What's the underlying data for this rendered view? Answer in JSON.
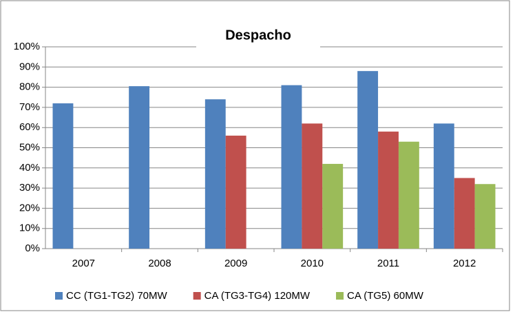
{
  "chart_data": {
    "type": "bar",
    "title": "Despacho",
    "categories": [
      "2007",
      "2008",
      "2009",
      "2010",
      "2011",
      "2012"
    ],
    "series": [
      {
        "name": "CC (TG1-TG2) 70MW",
        "color": "#4f81bd",
        "values": [
          72,
          80.5,
          74,
          81,
          88,
          62
        ]
      },
      {
        "name": "CA (TG3-TG4) 120MW",
        "color": "#c0504d",
        "values": [
          null,
          null,
          56,
          62,
          58,
          35
        ]
      },
      {
        "name": "CA (TG5) 60MW",
        "color": "#9bbb59",
        "values": [
          null,
          null,
          null,
          42,
          53,
          32
        ]
      }
    ],
    "ylim": [
      0,
      100
    ],
    "yticks": [
      {
        "value": 0,
        "label": "0%"
      },
      {
        "value": 10,
        "label": "10%"
      },
      {
        "value": 20,
        "label": "20%"
      },
      {
        "value": 30,
        "label": "30%"
      },
      {
        "value": 40,
        "label": "40%"
      },
      {
        "value": 50,
        "label": "50%"
      },
      {
        "value": 60,
        "label": "60%"
      },
      {
        "value": 70,
        "label": "70%"
      },
      {
        "value": 80,
        "label": "80%"
      },
      {
        "value": 90,
        "label": "90%"
      },
      {
        "value": 100,
        "label": "100%"
      }
    ],
    "grid": true,
    "legend": "bottom"
  }
}
